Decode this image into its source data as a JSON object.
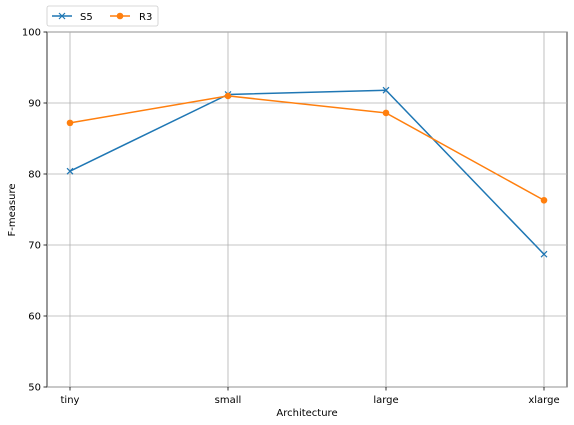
{
  "chart_data": {
    "type": "line",
    "categories": [
      "tiny",
      "small",
      "large",
      "xlarge"
    ],
    "xlabel": "Architecture",
    "ylabel": "F-measure",
    "ylim": [
      50,
      100
    ],
    "yticks": [
      50,
      60,
      70,
      80,
      90,
      100
    ],
    "grid": true,
    "legend_position": "top-left, above plot",
    "series": [
      {
        "name": "S5",
        "values": [
          80.4,
          91.2,
          91.8,
          68.7
        ],
        "color": "#1f77b4",
        "marker": "x"
      },
      {
        "name": "R3",
        "values": [
          87.2,
          91.0,
          88.6,
          76.3
        ],
        "color": "#ff7f0e",
        "marker": "circle"
      }
    ]
  }
}
